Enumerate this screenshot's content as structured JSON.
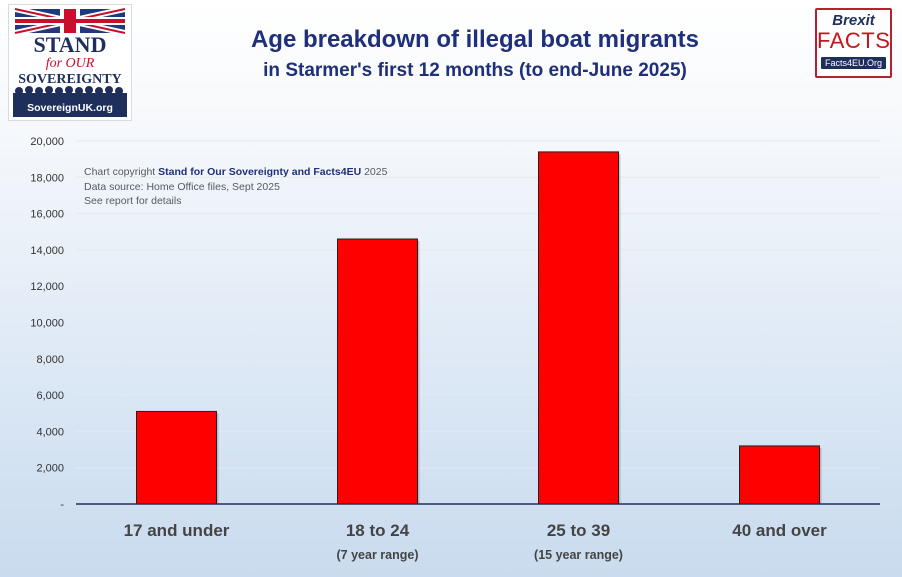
{
  "header": {
    "title": "Age breakdown of illegal boat migrants",
    "subtitle": "in Starmer's first 12 months (to end-June 2025)"
  },
  "logo_left": {
    "line1": "STAND",
    "line2": "for OUR",
    "line3": "SOVEREIGNTY",
    "url": "SovereignUK.org",
    "flag_icon": "union-flag-icon",
    "crowd_icon": "crowd-silhouette-icon"
  },
  "logo_right": {
    "line1": "Brexit",
    "line2": "FACTS",
    "url": "Facts4EU.Org"
  },
  "notes": {
    "copyright_prefix": "Chart copyright",
    "copyright_owner": "Stand for Our Sovereignty and Facts4EU",
    "copyright_year": "2025",
    "source": "Data source: Home Office files, Sept 2025",
    "details": "See report for details"
  },
  "chart_data": {
    "type": "bar",
    "categories": [
      "17 and under",
      "18 to 24",
      "25 to 39",
      "40 and over"
    ],
    "category_sublabels": [
      "",
      "(7 year range)",
      "(15 year range)",
      ""
    ],
    "values": [
      5100,
      14600,
      19400,
      3200
    ],
    "ylim": [
      0,
      20000
    ],
    "yticks": [
      0,
      2000,
      4000,
      6000,
      8000,
      10000,
      12000,
      14000,
      16000,
      18000,
      20000
    ],
    "ytick_labels": [
      "-",
      "2,000",
      "4,000",
      "6,000",
      "8,000",
      "10,000",
      "12,000",
      "14,000",
      "16,000",
      "18,000",
      "20,000"
    ],
    "grid": true,
    "legend": "none",
    "colors": {
      "bar": "#ff0000",
      "bar_stroke": "#222222",
      "axis": "#1f2f5c",
      "grid": "#e4e9f0"
    }
  }
}
